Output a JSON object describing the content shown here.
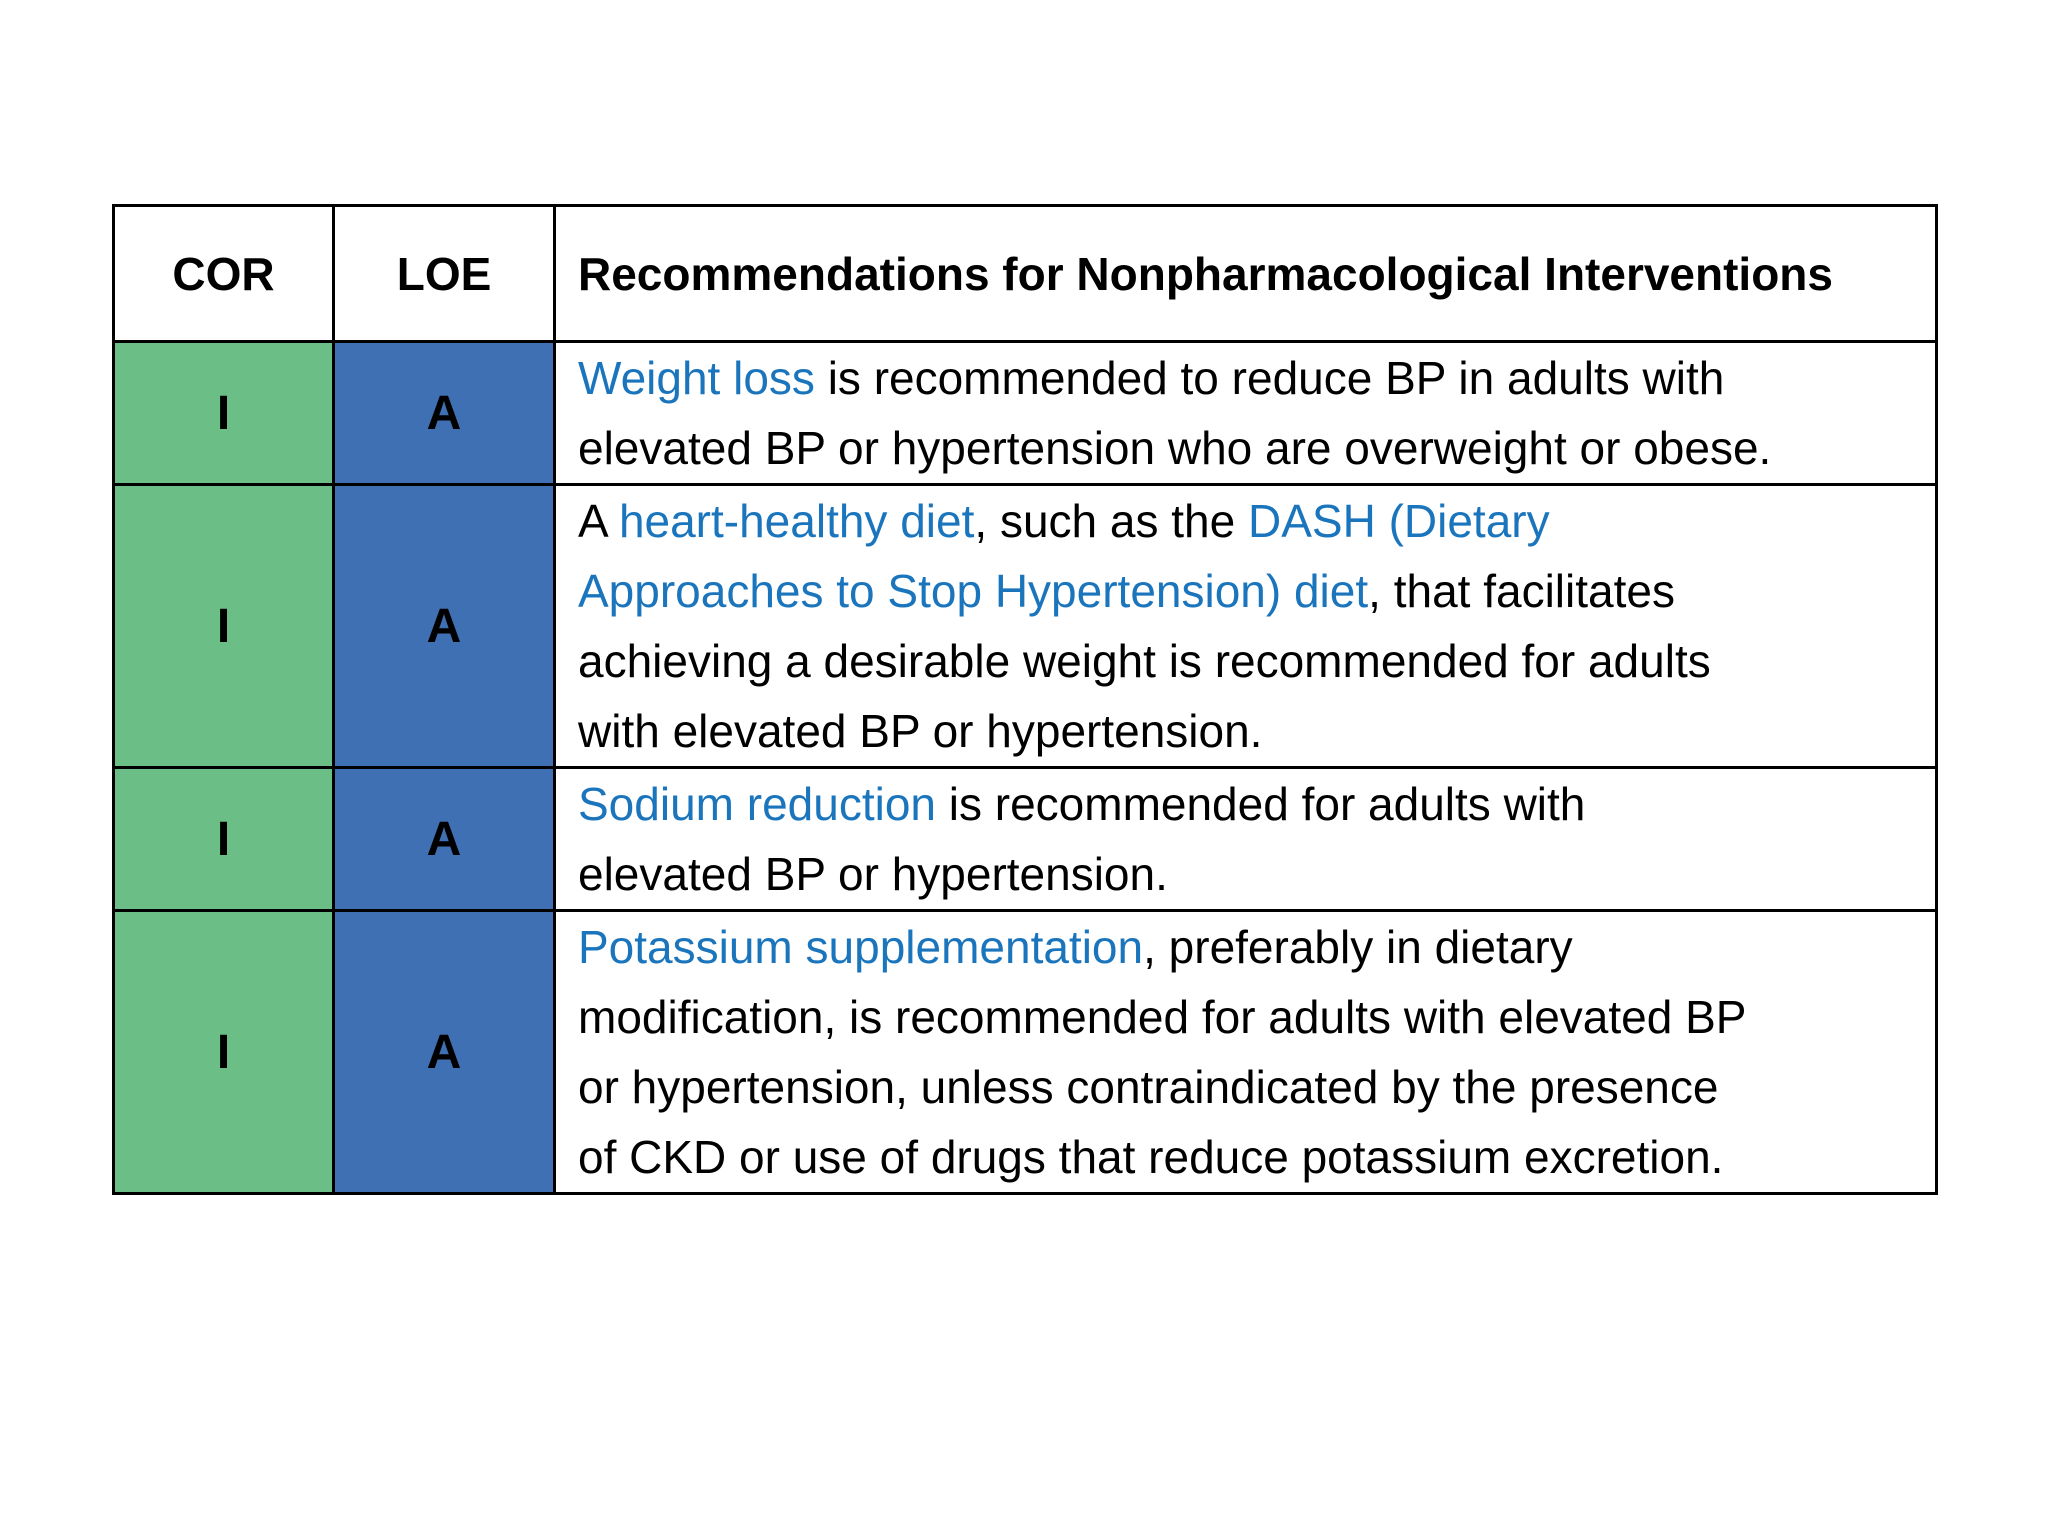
{
  "colors": {
    "cor_bg": "#6cbe87",
    "loe_bg": "#4070b4",
    "link": "#1b75bc",
    "border": "#000000"
  },
  "table": {
    "headers": {
      "cor": "COR",
      "loe": "LOE",
      "rec": "Recommendations for Nonpharmacological Interventions"
    },
    "rows": [
      {
        "cor": "I",
        "loe": "A",
        "segments": [
          {
            "t": "Weight loss",
            "link": true
          },
          {
            "t": " is recommended to reduce BP in adults with",
            "link": false
          },
          {
            "br": true
          },
          {
            "t": "elevated BP or hypertension who are overweight or obese.",
            "link": false
          }
        ]
      },
      {
        "cor": "I",
        "loe": "A",
        "segments": [
          {
            "t": "A ",
            "link": false
          },
          {
            "t": "heart-healthy diet",
            "link": true
          },
          {
            "t": ", such as the ",
            "link": false
          },
          {
            "t": "DASH (Dietary",
            "link": true
          },
          {
            "br": true
          },
          {
            "t": "Approaches to Stop Hypertension) diet",
            "link": true
          },
          {
            "t": ", that facilitates",
            "link": false
          },
          {
            "br": true
          },
          {
            "t": "achieving a desirable weight is recommended for adults",
            "link": false
          },
          {
            "br": true
          },
          {
            "t": "with elevated BP or hypertension.",
            "link": false
          }
        ]
      },
      {
        "cor": "I",
        "loe": "A",
        "segments": [
          {
            "t": "Sodium reduction",
            "link": true
          },
          {
            "t": " is recommended for adults with",
            "link": false
          },
          {
            "br": true
          },
          {
            "t": "elevated BP or hypertension.",
            "link": false
          }
        ]
      },
      {
        "cor": "I",
        "loe": "A",
        "segments": [
          {
            "t": "Potassium supplementation",
            "link": true
          },
          {
            "t": ", preferably in dietary",
            "link": false
          },
          {
            "br": true
          },
          {
            "t": "modification, is recommended for adults with elevated BP",
            "link": false
          },
          {
            "br": true
          },
          {
            "t": "or hypertension, unless contraindicated by the presence",
            "link": false
          },
          {
            "br": true
          },
          {
            "t": "of CKD or use of drugs that reduce potassium excretion.",
            "link": false
          }
        ]
      }
    ]
  }
}
